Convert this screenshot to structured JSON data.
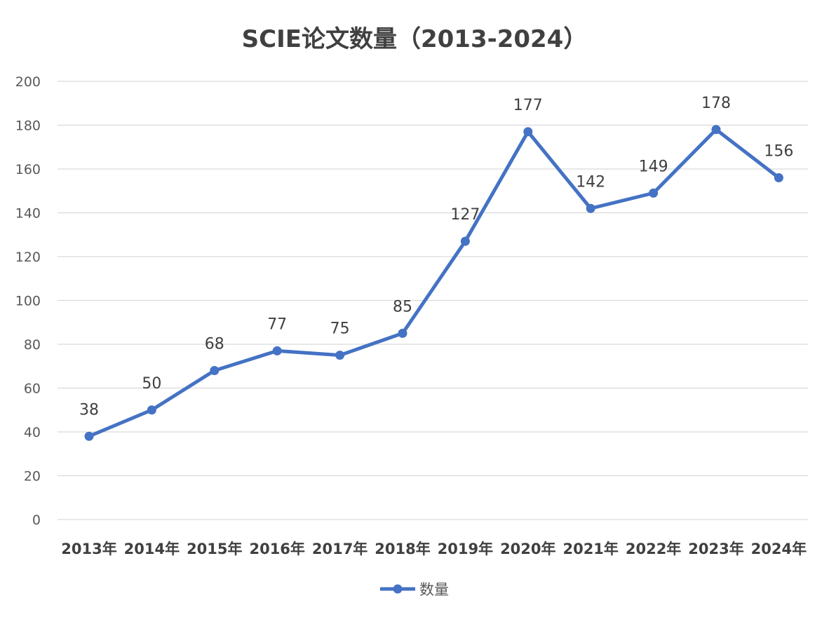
{
  "chart_data": {
    "type": "line",
    "title": "SCIE论文数量（2013-2024）",
    "xlabel": "",
    "ylabel": "",
    "categories": [
      "2013年",
      "2014年",
      "2015年",
      "2016年",
      "2017年",
      "2018年",
      "2019年",
      "2020年",
      "2021年",
      "2022年",
      "2023年",
      "2024年"
    ],
    "series": [
      {
        "name": "数量",
        "values": [
          38,
          50,
          68,
          77,
          75,
          85,
          127,
          177,
          142,
          149,
          178,
          156
        ],
        "color": "#4472C4"
      }
    ],
    "ylim": [
      0,
      200
    ],
    "yticks": [
      0,
      20,
      40,
      60,
      80,
      100,
      120,
      140,
      160,
      180,
      200
    ],
    "grid": true,
    "data_labels": true,
    "legend": "bottom-center",
    "gridline_color": "#d9d9d9"
  }
}
